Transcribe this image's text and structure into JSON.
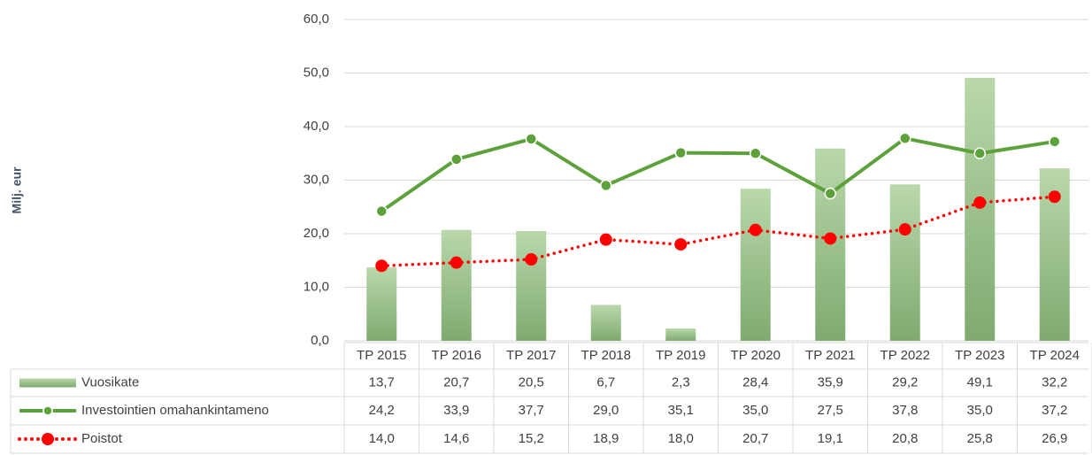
{
  "chart_data": {
    "type": "bar",
    "y_label": "Milj. eur",
    "categories": [
      "TP 2015",
      "TP 2016",
      "TP 2017",
      "TP 2018",
      "TP 2019",
      "TP 2020",
      "TP 2021",
      "TP 2022",
      "TP 2023",
      "TP 2024"
    ],
    "series": [
      {
        "name": "Vuosikate",
        "type": "bar",
        "color": "#a8cc98",
        "values": [
          13.7,
          20.7,
          20.5,
          6.7,
          2.3,
          28.4,
          35.9,
          29.2,
          49.1,
          32.2
        ],
        "value_labels": [
          "13,7",
          "20,7",
          "20,5",
          "6,7",
          "2,3",
          "28,4",
          "35,9",
          "29,2",
          "49,1",
          "32,2"
        ]
      },
      {
        "name": "Investointien omahankintameno",
        "type": "line",
        "color": "#5da13b",
        "line_style": "solid",
        "values": [
          24.2,
          33.9,
          37.7,
          29.0,
          35.1,
          35.0,
          27.5,
          37.8,
          35.0,
          37.2
        ],
        "value_labels": [
          "24,2",
          "33,9",
          "37,7",
          "29,0",
          "35,1",
          "35,0",
          "27,5",
          "37,8",
          "35,0",
          "37,2"
        ]
      },
      {
        "name": "Poistot",
        "type": "line",
        "color": "#ff0000",
        "line_style": "dotted",
        "values": [
          14.0,
          14.6,
          15.2,
          18.9,
          18.0,
          20.7,
          19.1,
          20.8,
          25.8,
          26.9
        ],
        "value_labels": [
          "14,0",
          "14,6",
          "15,2",
          "18,9",
          "18,0",
          "20,7",
          "19,1",
          "20,8",
          "25,8",
          "26,9"
        ]
      }
    ],
    "ylim": [
      0,
      60
    ],
    "yticks": [
      {
        "value": 0,
        "label": "0,0"
      },
      {
        "value": 10,
        "label": "10,0"
      },
      {
        "value": 20,
        "label": "20,0"
      },
      {
        "value": 30,
        "label": "30,0"
      },
      {
        "value": 40,
        "label": "40,0"
      },
      {
        "value": 50,
        "label": "50,0"
      },
      {
        "value": 60,
        "label": "60,0"
      }
    ],
    "grid": true
  }
}
